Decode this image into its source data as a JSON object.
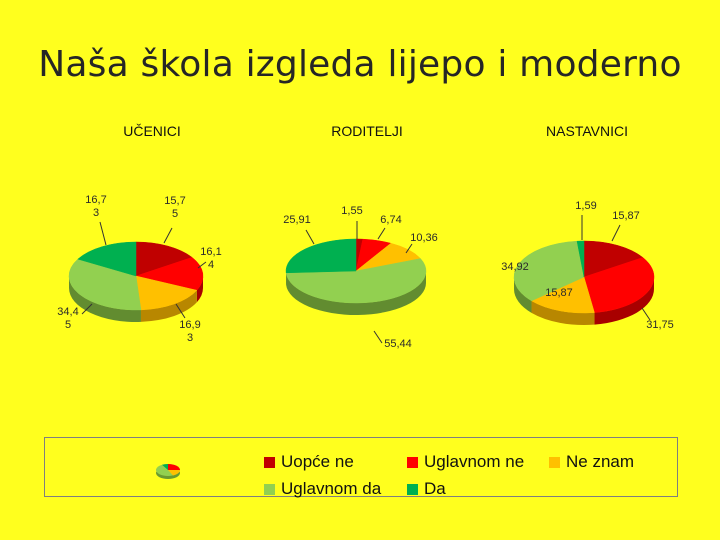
{
  "slide": {
    "title": "Naša škola izgleda lijepo i moderno"
  },
  "colors": {
    "uopce_ne": "#c00000",
    "uglavnom_ne": "#ff0000",
    "ne_znam": "#ffc000",
    "uglavnom_da": "#92d050",
    "da": "#00b050"
  },
  "legend": {
    "items": [
      {
        "label": "Uopće ne",
        "color": "#c00000"
      },
      {
        "label": "Uglavnom ne",
        "color": "#ff0000"
      },
      {
        "label": "Ne znam",
        "color": "#ffc000"
      },
      {
        "label": "Uglavnom da",
        "color": "#92d050"
      },
      {
        "label": "Da",
        "color": "#00b050"
      }
    ]
  },
  "chart_data": [
    {
      "type": "pie",
      "title": "UČENICI",
      "categories": [
        "Uopće ne",
        "Uglavnom ne",
        "Ne znam",
        "Uglavnom da",
        "Da"
      ],
      "values": [
        15.75,
        16.14,
        16.93,
        34.45,
        16.73
      ],
      "data_labels": [
        [
          "15,7",
          "5"
        ],
        [
          "16,1",
          "4"
        ],
        [
          "16,9",
          "3"
        ],
        [
          "34,4",
          "5"
        ],
        [
          "16,7",
          "3"
        ]
      ]
    },
    {
      "type": "pie",
      "title": "RODITELJI",
      "categories": [
        "Uopće ne",
        "Uglavnom ne",
        "Ne znam",
        "Uglavnom da",
        "Da"
      ],
      "values": [
        1.55,
        6.74,
        10.36,
        55.44,
        25.91
      ],
      "data_labels": [
        [
          "1,55"
        ],
        [
          "6,74"
        ],
        [
          "10,36"
        ],
        [
          "55,44"
        ],
        [
          "25,91"
        ]
      ]
    },
    {
      "type": "pie",
      "title": "NASTAVNICI",
      "categories": [
        "Uopće ne",
        "Uglavnom ne",
        "Ne znam",
        "Uglavnom da",
        "Da"
      ],
      "values": [
        15.87,
        31.75,
        15.87,
        34.92,
        1.59
      ],
      "data_labels": [
        [
          "15,87"
        ],
        [
          "31,75"
        ],
        [
          "15,87"
        ],
        [
          "34,92"
        ],
        [
          "1,59"
        ]
      ]
    }
  ]
}
